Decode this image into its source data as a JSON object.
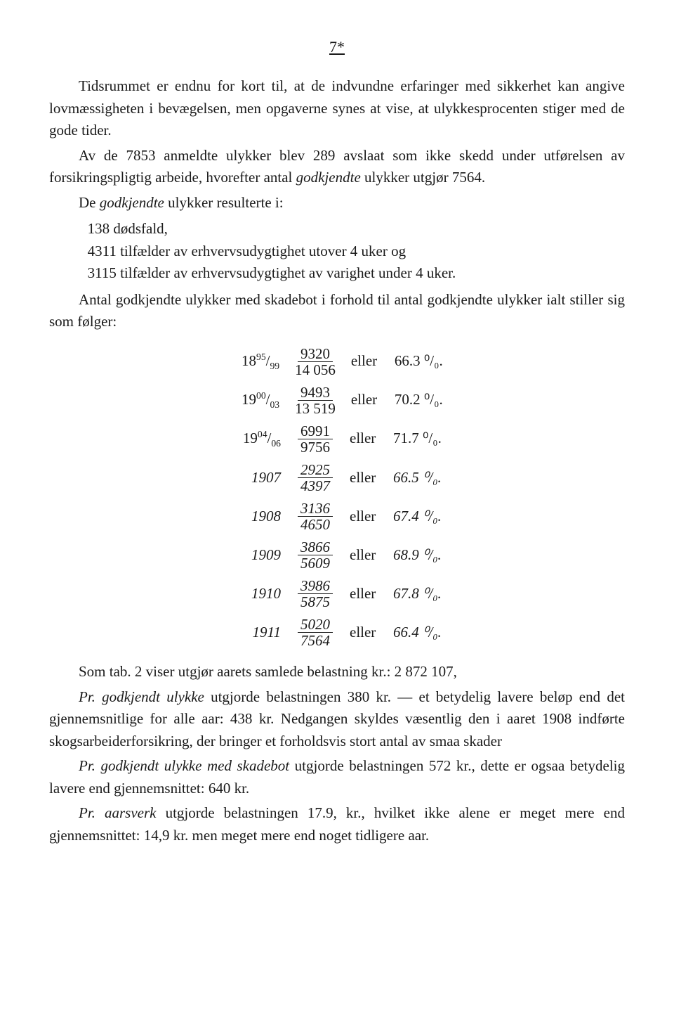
{
  "page_number": "7*",
  "para1": "Tidsrummet er endnu for kort til, at de indvundne erfaringer med sikkerhet kan angive lovmæssigheten i bevægelsen, men opgaverne synes at vise, at ulykkesprocenten stiger med de gode tider.",
  "para2_a": "Av de 7853 anmeldte ulykker blev 289 avslaat som ikke skedd under utførelsen av forsikringspligtig arbeide, hvorefter antal ",
  "para2_b": "godkjendte",
  "para2_c": " ulykker utgjør 7564.",
  "para3_a": "De ",
  "para3_b": "godkjendte",
  "para3_c": " ulykker resulterte i:",
  "list": {
    "l1": "138 dødsfald,",
    "l2": "4311 tilfælder av erhvervsudygtighet utover 4 uker og",
    "l3": "3115 tilfælder av erhvervsudygtighet av varighet under 4 uker."
  },
  "para4": "Antal godkjendte ulykker med skadebot i forhold til antal godkjendte ulykker ialt stiller sig som følger:",
  "fraction_rows": [
    {
      "year_html": "18<sup>95</sup>/<sub>99</sub>",
      "num": "9320",
      "den": "14 056",
      "pct": "66.3",
      "italic": false
    },
    {
      "year_html": "19<sup>00</sup>/<sub>03</sub>",
      "num": "9493",
      "den": "13 519",
      "pct": "70.2",
      "italic": false
    },
    {
      "year_html": "19<sup>04</sup>/<sub>06</sub>",
      "num": "6991",
      "den": "9756",
      "pct": "71.7",
      "italic": false
    },
    {
      "year_html": "1907",
      "num": "2925",
      "den": "4397",
      "pct": "66.5",
      "italic": true
    },
    {
      "year_html": "1908",
      "num": "3136",
      "den": "4650",
      "pct": "67.4",
      "italic": true
    },
    {
      "year_html": "1909",
      "num": "3866",
      "den": "5609",
      "pct": "68.9",
      "italic": true
    },
    {
      "year_html": "1910",
      "num": "3986",
      "den": "5875",
      "pct": "67.8",
      "italic": true
    },
    {
      "year_html": "1911",
      "num": "5020",
      "den": "7564",
      "pct": "66.4",
      "italic": true
    }
  ],
  "eller_label": "eller",
  "pct_suffix": " ⁰/₀.",
  "para5": "Som tab. 2 viser utgjør aarets samlede belastning kr.: 2 872 107,",
  "para6_a": "Pr. godkjendt ulykke",
  "para6_b": " utgjorde belastningen 380 kr. — et betydelig lavere beløp end det gjennemsnitlige for alle aar: 438 kr. Nedgangen skyldes væsentlig den i aaret 1908 indførte skogsarbeiderforsikring, der bringer et forholdsvis stort antal av smaa skader",
  "para7_a": "Pr. godkjendt ulykke med skadebot",
  "para7_b": " utgjorde belastningen 572 kr., dette er ogsaa betydelig lavere end gjennemsnittet: 640 kr.",
  "para8_a": "Pr. aarsverk",
  "para8_b": " utgjorde belastningen 17.9, kr., hvilket ikke alene er meget mere end gjennemsnittet: 14,9 kr. men meget mere end noget tidligere aar."
}
